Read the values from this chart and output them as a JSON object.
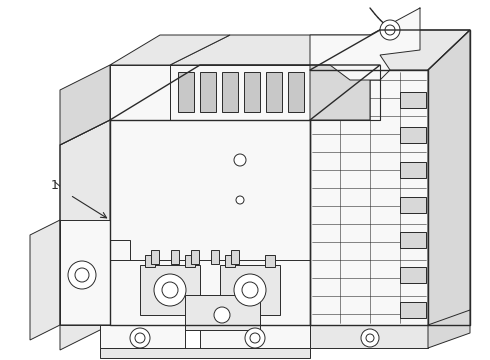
{
  "background_color": "#ffffff",
  "line_color": "#2a2a2a",
  "line_width": 0.7,
  "label_number": "1",
  "fig_width": 4.9,
  "fig_height": 3.6,
  "dpi": 100,
  "image_extent": [
    0,
    490,
    0,
    360
  ]
}
